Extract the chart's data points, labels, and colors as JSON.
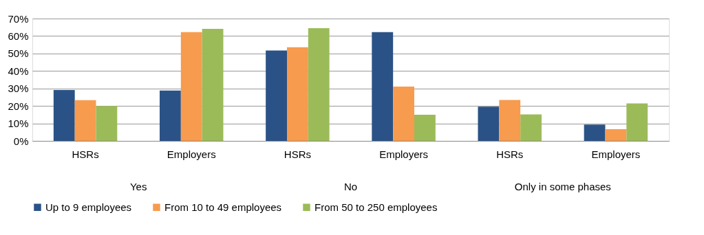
{
  "chart_data": {
    "type": "bar",
    "categories": [
      "HSRs",
      "Employers",
      "HSRs",
      "Employers",
      "HSRs",
      "Employers"
    ],
    "annotations": [
      "Yes",
      "No",
      "Only in some phases"
    ],
    "series": [
      {
        "name": "Up to 9 employees",
        "color": "#2a5286",
        "values": [
          29.1,
          28.8,
          51.7,
          62.2,
          19.6,
          9.3
        ]
      },
      {
        "name": "From 10 to 49 employees",
        "color": "#f79b4f",
        "values": [
          23.3,
          62.2,
          53.6,
          31.1,
          23.4,
          6.7
        ]
      },
      {
        "name": "From 50 to 250 employees",
        "color": "#9bbb59",
        "values": [
          20.0,
          64.1,
          64.5,
          14.9,
          15.1,
          21.4
        ]
      }
    ],
    "ylim": [
      0,
      70
    ],
    "yticks": [
      {
        "value": 0,
        "label": "0%"
      },
      {
        "value": 10,
        "label": "10%"
      },
      {
        "value": 20,
        "label": "20%"
      },
      {
        "value": 30,
        "label": "30%"
      },
      {
        "value": 40,
        "label": "40%"
      },
      {
        "value": 50,
        "label": "50%"
      },
      {
        "value": 60,
        "label": "60%"
      },
      {
        "value": 70,
        "label": "70%"
      }
    ],
    "grid": "y",
    "legend": "bottom"
  }
}
